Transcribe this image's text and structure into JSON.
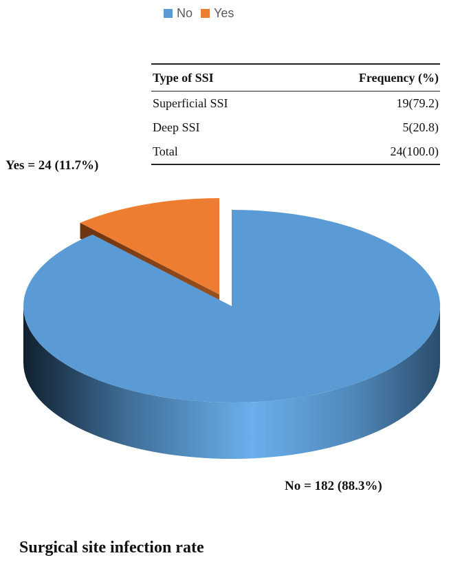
{
  "chart_data": {
    "type": "pie",
    "title": "Surgical site infection rate",
    "legend_position": "top",
    "slices": [
      {
        "name": "No",
        "value": 182,
        "percent": 88.3,
        "label": "No = 182 (88.3%)",
        "color": "#5B9BD5",
        "exploded": false
      },
      {
        "name": "Yes",
        "value": 24,
        "percent": 11.7,
        "label": "Yes = 24 (11.7%)",
        "color": "#ED7D31",
        "exploded": true
      }
    ]
  },
  "legend": {
    "items": [
      {
        "label": "No",
        "color": "#5B9BD5"
      },
      {
        "label": "Yes",
        "color": "#ED7D31"
      }
    ]
  },
  "table": {
    "headers": [
      "Type of SSI",
      "Frequency (%)"
    ],
    "rows": [
      [
        "Superficial SSI",
        "19(79.2)"
      ],
      [
        "Deep SSI",
        "5(20.8)"
      ],
      [
        "Total",
        "24(100.0)"
      ]
    ]
  }
}
